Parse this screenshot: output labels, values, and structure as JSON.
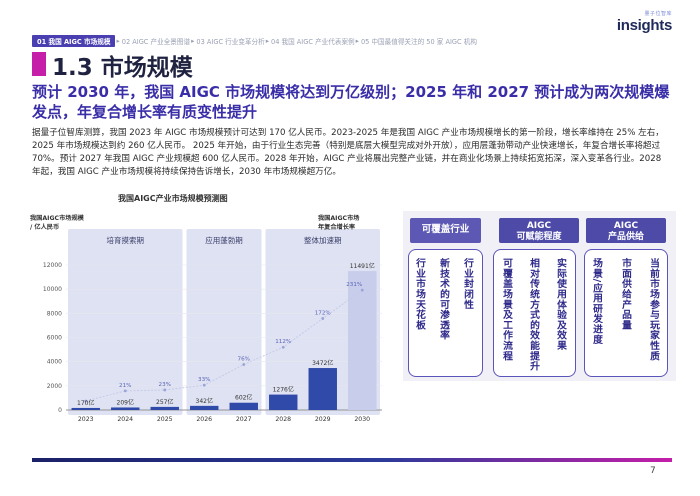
{
  "breadcrumb": {
    "active": "01 我国 AIGC 市场规模",
    "items": [
      "02 AIGC 产业全景图谱",
      "03 AIGC 行业变革分析",
      "04 我国 AIGC 产业代表案例",
      "05 中国最值得关注的 50 家 AIGC 机构"
    ],
    "separator": "▸"
  },
  "logo": {
    "cn": "量子位智库",
    "en": "insights"
  },
  "title": "1.3 市场规模",
  "headline": "预计 2030 年，我国 AIGC 市场规模将达到万亿级别；2025 年和 2027 预计成为两次规模爆发点，年复合增长率有质变性提升",
  "paragraph": "据量子位智库测算，我国 2023 年 AIGC 市场规模预计可达到 170 亿人民币。2023-2025 年是我国 AIGC 产业市场规模增长的第一阶段，增长率维持在 25% 左右，2025 年市场规模达到约 260 亿人民币。 2025 年开始，由于行业生态完善（特别是底层大模型完成对外开放），应用层蓬勃带动产业快速增长，年复合增长率将超过 70%。预计 2027 年我国 AIGC 产业规模超 600 亿人民币。2028 年开始，AIGC 产业将展出完整产业链，并在商业化场景上持续拓宽拓深，深入变革各行业。2028 年起，我国 AIGC 产业市场规模将持续保持告诉增长，2030 年市场规模超万亿。",
  "chart_data": {
    "type": "bar",
    "title": "我国AIGC产业市场规模预测图",
    "ylabel": [
      "我国AIGC市场规模",
      "/ 亿人民币"
    ],
    "rate_label": [
      "我国AIGC市场",
      "年复合增长率"
    ],
    "categories": [
      "2023",
      "2024",
      "2025",
      "2026",
      "2027",
      "2028",
      "2029",
      "2030"
    ],
    "values": [
      170,
      209,
      257,
      342,
      602,
      1276,
      3472,
      11491
    ],
    "value_labels": [
      "170亿",
      "209亿",
      "257亿",
      "342亿",
      "602亿",
      "1276亿",
      "3472亿",
      "11491亿"
    ],
    "growth_rates": [
      null,
      21,
      23,
      33,
      76,
      112,
      172,
      231
    ],
    "growth_labels": [
      "",
      "21%",
      "23%",
      "33%",
      "76%",
      "112%",
      "172%",
      "231%"
    ],
    "y_ticks": [
      0,
      2000,
      4000,
      6000,
      8000,
      10000,
      12000
    ],
    "ylim": [
      0,
      12000
    ],
    "phases": [
      "培育摸索期",
      "应用蓬勃期",
      "整体加速期"
    ],
    "colors": {
      "bar": "#2f4aa8",
      "bar_highlight": "#c7cdea",
      "phase_bg": "#dfe2f2",
      "rate_line": "#c5cbe8"
    }
  },
  "panel": {
    "columns": [
      {
        "header": "可覆盖行业",
        "items": [
          "行业市场天花板",
          "新技术的可渗透率",
          "行业封闭性"
        ]
      },
      {
        "header": [
          "AIGC",
          "可赋能程度"
        ],
        "items": [
          "可覆盖场景及工作流程",
          "相对传统方式的效能提升",
          "实际使用体验及效果"
        ]
      },
      {
        "header": [
          "AIGC",
          "产品供给"
        ],
        "items": [
          "场景/应用研发进度",
          "市面供给产品量",
          "当前市场参与玩家性质"
        ]
      }
    ]
  },
  "page_number": "7",
  "colors": {
    "brand": "#3a2ea8",
    "accent": "#c51ea8",
    "dark_navy": "#1b2168"
  }
}
